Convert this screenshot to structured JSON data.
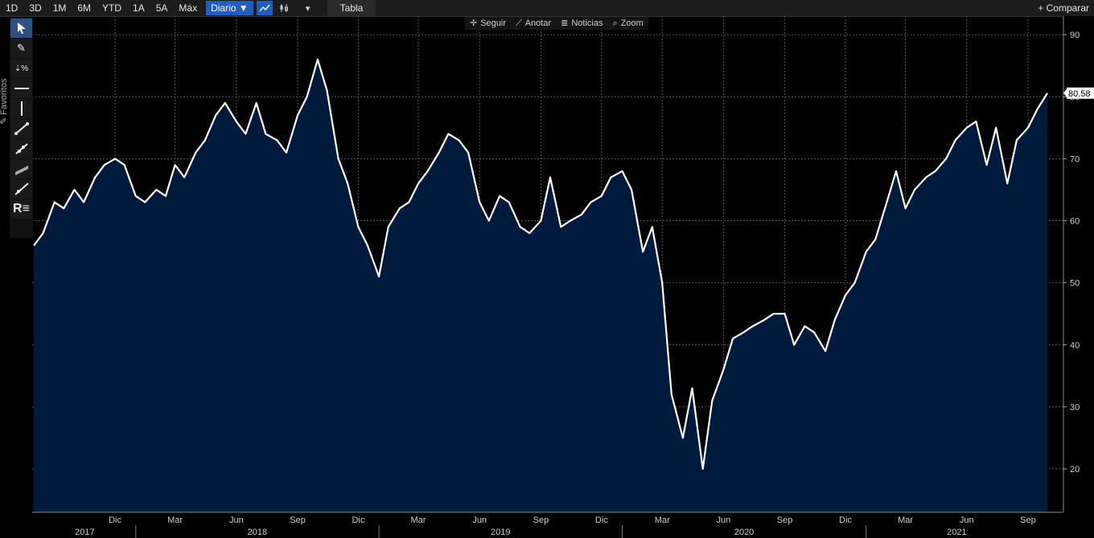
{
  "toolbar": {
    "ranges": [
      "1D",
      "3D",
      "1M",
      "6M",
      "YTD",
      "1A",
      "5A",
      "Máx"
    ],
    "frequency": "Diario ▼",
    "table_label": "Tabla",
    "compare_label": "+ Comparar"
  },
  "chart_toolbar": {
    "follow": "Seguir",
    "annotate": "Anotar",
    "news": "Noticias",
    "zoom": "Zoom"
  },
  "sidebar": {
    "favorites_label": "Favoritos"
  },
  "chart_data": {
    "type": "area",
    "ylim": [
      13,
      93
    ],
    "yticks": [
      20,
      30,
      40,
      50,
      60,
      70,
      80,
      90
    ],
    "last_value": "80.58",
    "month_ticks": [
      "Dic",
      "Mar",
      "Jun",
      "Sep",
      "Dic",
      "Mar",
      "Jun",
      "Sep",
      "Dic",
      "Mar",
      "Jun",
      "Sep",
      "Dic",
      "Mar",
      "Jun",
      "Sep"
    ],
    "year_labels": [
      "2017",
      "2018",
      "2019",
      "2020",
      "2021"
    ],
    "x_range": [
      "2017-08-01",
      "2021-09-30"
    ],
    "series": [
      {
        "points": [
          [
            "2017-08-01",
            56
          ],
          [
            "2017-08-15",
            58
          ],
          [
            "2017-09-01",
            63
          ],
          [
            "2017-09-15",
            62
          ],
          [
            "2017-10-01",
            65
          ],
          [
            "2017-10-15",
            63
          ],
          [
            "2017-11-01",
            67
          ],
          [
            "2017-11-15",
            69
          ],
          [
            "2017-12-01",
            70
          ],
          [
            "2017-12-15",
            69
          ],
          [
            "2018-01-01",
            64
          ],
          [
            "2018-01-15",
            63
          ],
          [
            "2018-02-01",
            65
          ],
          [
            "2018-02-15",
            64
          ],
          [
            "2018-03-01",
            69
          ],
          [
            "2018-03-15",
            67
          ],
          [
            "2018-04-01",
            71
          ],
          [
            "2018-04-15",
            73
          ],
          [
            "2018-05-01",
            77
          ],
          [
            "2018-05-15",
            79
          ],
          [
            "2018-06-01",
            76
          ],
          [
            "2018-06-15",
            74
          ],
          [
            "2018-07-01",
            79
          ],
          [
            "2018-07-15",
            74
          ],
          [
            "2018-08-01",
            73
          ],
          [
            "2018-08-15",
            71
          ],
          [
            "2018-09-01",
            77
          ],
          [
            "2018-09-15",
            80
          ],
          [
            "2018-10-01",
            86
          ],
          [
            "2018-10-15",
            81
          ],
          [
            "2018-11-01",
            70
          ],
          [
            "2018-11-15",
            66
          ],
          [
            "2018-12-01",
            59
          ],
          [
            "2018-12-15",
            56
          ],
          [
            "2019-01-01",
            51
          ],
          [
            "2019-01-15",
            59
          ],
          [
            "2019-02-01",
            62
          ],
          [
            "2019-02-15",
            63
          ],
          [
            "2019-03-01",
            66
          ],
          [
            "2019-03-15",
            68
          ],
          [
            "2019-04-01",
            71
          ],
          [
            "2019-04-15",
            74
          ],
          [
            "2019-05-01",
            73
          ],
          [
            "2019-05-15",
            71
          ],
          [
            "2019-06-01",
            63
          ],
          [
            "2019-06-15",
            60
          ],
          [
            "2019-07-01",
            64
          ],
          [
            "2019-07-15",
            63
          ],
          [
            "2019-08-01",
            59
          ],
          [
            "2019-08-15",
            58
          ],
          [
            "2019-09-01",
            60
          ],
          [
            "2019-09-15",
            67
          ],
          [
            "2019-10-01",
            59
          ],
          [
            "2019-10-15",
            60
          ],
          [
            "2019-11-01",
            61
          ],
          [
            "2019-11-15",
            63
          ],
          [
            "2019-12-01",
            64
          ],
          [
            "2019-12-15",
            67
          ],
          [
            "2020-01-01",
            68
          ],
          [
            "2020-01-15",
            65
          ],
          [
            "2020-02-01",
            55
          ],
          [
            "2020-02-15",
            59
          ],
          [
            "2020-03-01",
            50
          ],
          [
            "2020-03-15",
            32
          ],
          [
            "2020-04-01",
            25
          ],
          [
            "2020-04-15",
            33
          ],
          [
            "2020-05-01",
            20
          ],
          [
            "2020-05-15",
            31
          ],
          [
            "2020-06-01",
            36
          ],
          [
            "2020-06-15",
            41
          ],
          [
            "2020-07-01",
            42
          ],
          [
            "2020-07-15",
            43
          ],
          [
            "2020-08-01",
            44
          ],
          [
            "2020-08-15",
            45
          ],
          [
            "2020-09-01",
            45
          ],
          [
            "2020-09-15",
            40
          ],
          [
            "2020-10-01",
            43
          ],
          [
            "2020-10-15",
            42
          ],
          [
            "2020-11-01",
            39
          ],
          [
            "2020-11-15",
            44
          ],
          [
            "2020-12-01",
            48
          ],
          [
            "2020-12-15",
            50
          ],
          [
            "2021-01-01",
            55
          ],
          [
            "2021-01-15",
            57
          ],
          [
            "2021-02-01",
            63
          ],
          [
            "2021-02-15",
            68
          ],
          [
            "2021-03-01",
            62
          ],
          [
            "2021-03-15",
            65
          ],
          [
            "2021-04-01",
            67
          ],
          [
            "2021-04-15",
            68
          ],
          [
            "2021-05-01",
            70
          ],
          [
            "2021-05-15",
            73
          ],
          [
            "2021-06-01",
            75
          ],
          [
            "2021-06-15",
            76
          ],
          [
            "2021-07-01",
            69
          ],
          [
            "2021-07-15",
            75
          ],
          [
            "2021-08-01",
            66
          ],
          [
            "2021-08-15",
            73
          ],
          [
            "2021-09-01",
            75
          ],
          [
            "2021-09-15",
            78
          ],
          [
            "2021-09-30",
            80.58
          ]
        ]
      }
    ]
  },
  "colors": {
    "area": "#001a3d",
    "line": "#ffffff",
    "grid": "#555555",
    "selected": "#1f5fbf"
  }
}
